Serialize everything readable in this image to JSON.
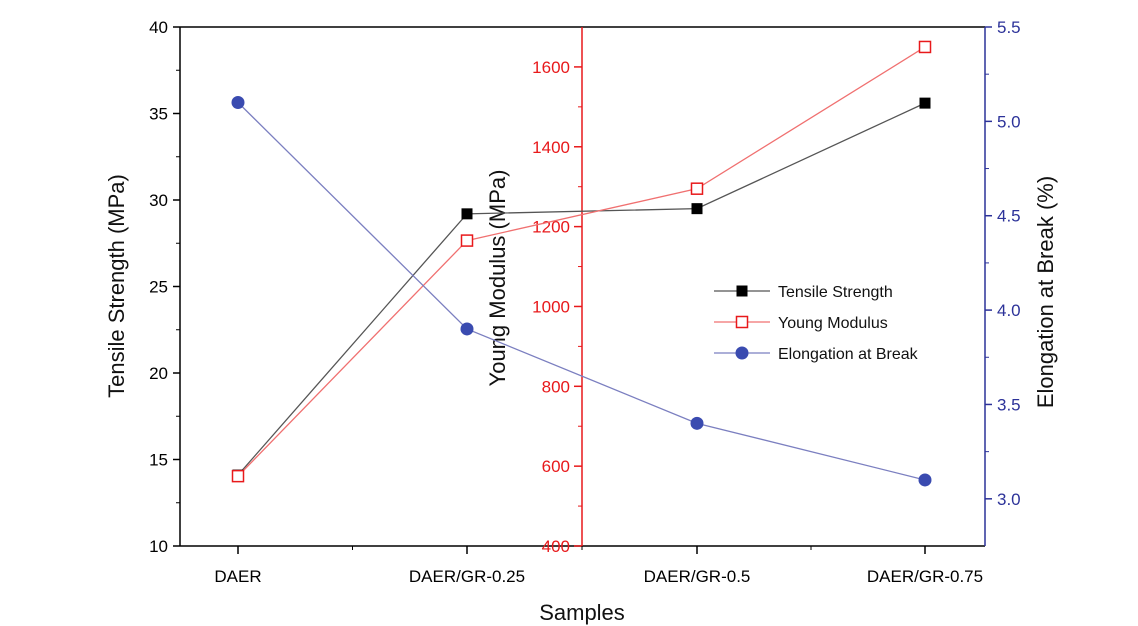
{
  "chart_data": {
    "type": "line",
    "categories": [
      "DAER",
      "DAER/GR-0.25",
      "DAER/GR-0.5",
      "DAER/GR-0.75"
    ],
    "xlabel": "Samples",
    "axes": {
      "left": {
        "label": "Tensile Strength (MPa)",
        "range": [
          10,
          40
        ],
        "ticks": [
          10,
          15,
          20,
          25,
          30,
          35,
          40
        ],
        "color": "#000000"
      },
      "middle": {
        "label": "Young Modulus (MPa)",
        "range": [
          400,
          1700
        ],
        "ticks": [
          400,
          600,
          800,
          1000,
          1200,
          1400,
          1600
        ],
        "color": "#e8191b"
      },
      "right": {
        "label": "Elongation at Break (%)",
        "range": [
          2.75,
          5.5
        ],
        "ticks": [
          "3.0",
          "3.5",
          "4.0",
          "4.5",
          "5.0",
          "5.5"
        ],
        "color": "#2c3299"
      }
    },
    "series": [
      {
        "name": "Tensile Strength",
        "axis": "left",
        "values": [
          14.1,
          29.2,
          29.5,
          35.6
        ],
        "line_color": "#555555",
        "marker": "filled-square",
        "marker_color": "#000000"
      },
      {
        "name": "Young Modulus",
        "axis": "middle",
        "values": [
          575,
          1165,
          1295,
          1650
        ],
        "line_color": "#f07070",
        "marker": "open-square",
        "marker_color": "#e8191b"
      },
      {
        "name": "Elongation at Break",
        "axis": "right",
        "values": [
          5.1,
          3.9,
          3.4,
          3.1
        ],
        "line_color": "#7b7fc0",
        "marker": "filled-circle",
        "marker_color": "#3a4bb0"
      }
    ],
    "legend_placement": "center-right",
    "grid": false
  }
}
